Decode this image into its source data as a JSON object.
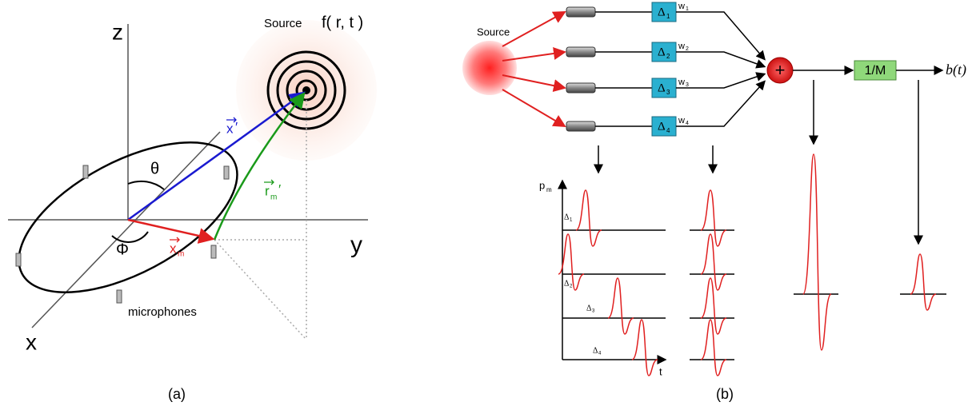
{
  "panel_a": {
    "axis_z": "z",
    "axis_y": "y",
    "axis_x": "x",
    "source": "Source",
    "source_function": "f( r, t )",
    "vector_x_prime": {
      "base": "x",
      "mark": "′"
    },
    "vector_r_m_prime": {
      "base": "r",
      "sub": "m",
      "mark": "′"
    },
    "vector_x_m": {
      "base": "x",
      "sub": "m"
    },
    "theta": "θ",
    "phi": "Φ",
    "microphones": "microphones",
    "caption": "(a)"
  },
  "panel_b": {
    "source": "Source",
    "delays": [
      {
        "symbol": "Δ",
        "index": "1"
      },
      {
        "symbol": "Δ",
        "index": "2"
      },
      {
        "symbol": "Δ",
        "index": "3"
      },
      {
        "symbol": "Δ",
        "index": "4"
      }
    ],
    "weights": [
      {
        "symbol": "w",
        "index": "1"
      },
      {
        "symbol": "w",
        "index": "2"
      },
      {
        "symbol": "w",
        "index": "3"
      },
      {
        "symbol": "w",
        "index": "4"
      }
    ],
    "sum": "+",
    "gain": "1/M",
    "output": "b(t)",
    "plot": {
      "y_label": {
        "base": "p",
        "sub": "m"
      },
      "x_label": "t",
      "delays": [
        {
          "symbol": "Δ",
          "index": "1"
        },
        {
          "symbol": "Δ",
          "index": "2"
        },
        {
          "symbol": "Δ",
          "index": "3"
        },
        {
          "symbol": "Δ",
          "index": "4"
        }
      ]
    },
    "caption": "(b)"
  }
}
